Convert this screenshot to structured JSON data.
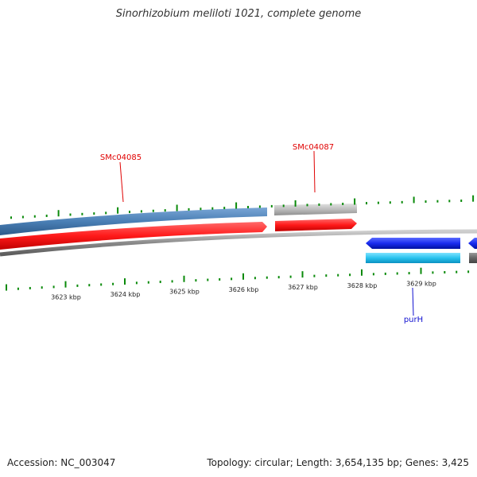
{
  "title": "Sinorhizobium meliloti 1021, complete genome",
  "footer": {
    "accession": "Accession: NC_003047",
    "summary": "Topology: circular; Length: 3,654,135 bp; Genes: 3,425"
  },
  "axis": {
    "unit": "kbp",
    "labels": [
      "3623 kbp",
      "3624 kbp",
      "3625 kbp",
      "3626 kbp",
      "3627 kbp",
      "3628 kbp",
      "3629 kbp"
    ]
  },
  "genes": [
    {
      "name": "SMc04085",
      "color": "#e00000"
    },
    {
      "name": "SMc04087",
      "color": "#e00000"
    },
    {
      "name": "purH",
      "color": "#1010d0"
    }
  ],
  "colors": {
    "forward_cds": "#ff2020",
    "forward_gene": "#4a7fb5",
    "reverse_cds": "#1a2cf0",
    "reverse_gene": "#29c3ee",
    "backbone": "#7a7a7a",
    "tick": "#0a8a0a",
    "pseudo": "#b8b8b8"
  }
}
